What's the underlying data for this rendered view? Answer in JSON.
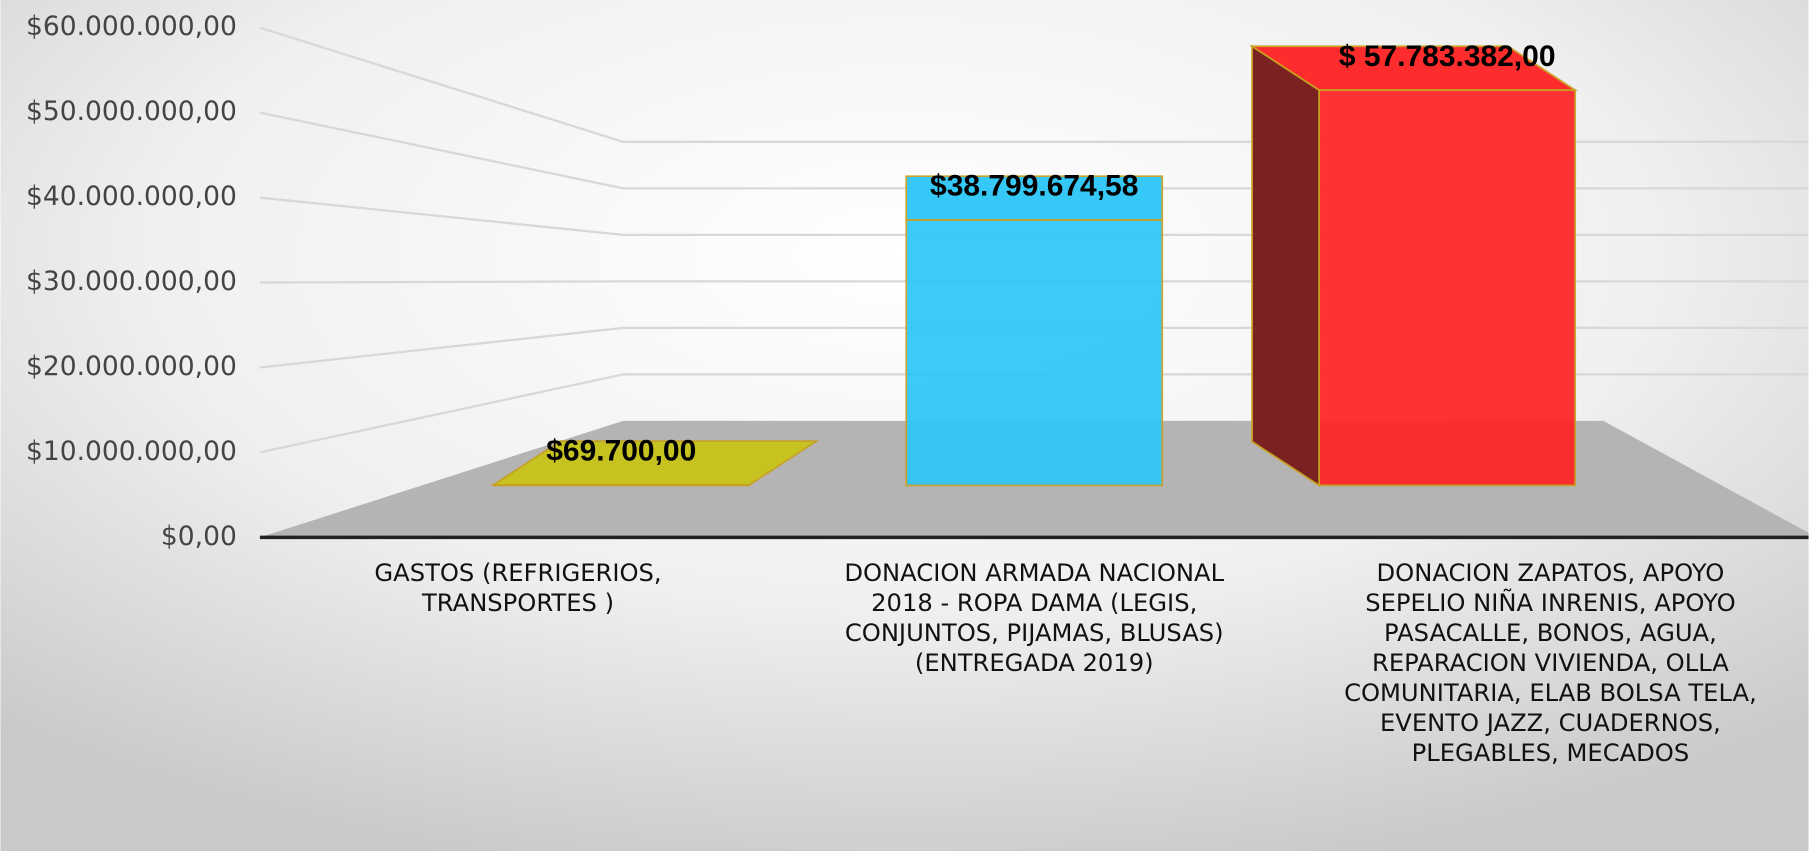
{
  "chart_data": {
    "type": "bar3d",
    "categories": [
      "GASTOS (REFRIGERIOS, TRANSPORTES )",
      "DONACION ARMADA NACIONAL 2018 - ROPA DAMA (LEGIS, CONJUNTOS, PIJAMAS, BLUSAS) (ENTREGADA 2019)",
      "DONACION ZAPATOS, APOYO SEPELIO NIÑA INRENIS, APOYO PASACALLE, BONOS,  AGUA, REPARACION VIVIENDA, OLLA COMUNITARIA, ELAB BOLSA TELA, EVENTO JAZZ, CUADERNOS, PLEGABLES, MECADOS"
    ],
    "values": [
      69700,
      38799674.58,
      57783382
    ],
    "value_labels": [
      "$69.700,00",
      "$38.799.674,58",
      "$ 57.783.382,00"
    ],
    "colors": [
      "#c8c41a",
      "#2cc6f6",
      "#ff2222"
    ],
    "ylim": [
      0,
      60000000
    ],
    "yticks": [
      {
        "value": 0,
        "label": "$0,00"
      },
      {
        "value": 10000000,
        "label": "$10.000.000,00"
      },
      {
        "value": 20000000,
        "label": "$20.000.000,00"
      },
      {
        "value": 30000000,
        "label": "$30.000.000,00"
      },
      {
        "value": 40000000,
        "label": "$40.000.000,00"
      },
      {
        "value": 50000000,
        "label": "$50.000.000,00"
      },
      {
        "value": 60000000,
        "label": "$60.000.000,00"
      }
    ],
    "grid": true
  }
}
